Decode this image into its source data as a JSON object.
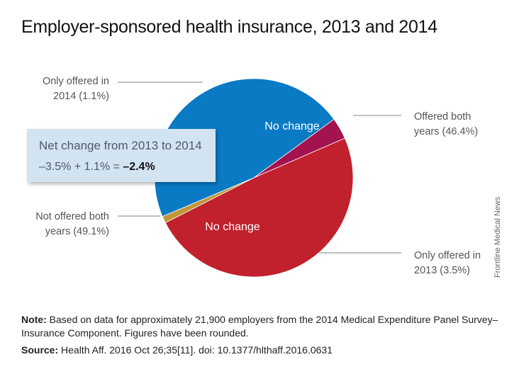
{
  "title": "Employer-sponsored health insurance, 2013 and 2014",
  "chart_data": {
    "type": "pie",
    "title": "Employer-sponsored health insurance, 2013 and 2014",
    "slices": [
      {
        "name": "Offered both years",
        "value": 46.4,
        "label": "Offered both years (46.4%)",
        "inner_label": "No change",
        "color": "#0a7ac4"
      },
      {
        "name": "Only offered in 2013",
        "value": 3.5,
        "label": "Only offered in 2013 (3.5%)",
        "inner_label": "",
        "color": "#a3134f"
      },
      {
        "name": "Not offered both years",
        "value": 49.1,
        "label": "Not offered both years (49.1%)",
        "inner_label": "No change",
        "color": "#c1202d"
      },
      {
        "name": "Only offered in 2014",
        "value": 1.1,
        "label": "Only offered in 2014 (1.1%)",
        "inner_label": "",
        "color": "#c09637"
      }
    ]
  },
  "labels": {
    "only_2014": [
      "Only offered in",
      "2014 (1.1%)"
    ],
    "offered_both": [
      "Offered both",
      "years (46.4%)"
    ],
    "not_offered": [
      "Not offered both",
      "years (49.1%)"
    ],
    "only_2013": [
      "Only offered in",
      "2013 (3.5%)"
    ],
    "no_change_top": "No change",
    "no_change_bottom": "No change"
  },
  "net_box": {
    "title": "Net change from 2013 to 2014",
    "equation": "–3.5% + 1.1% = ",
    "result": "–2.4%"
  },
  "credit": "Frontline Medical News",
  "note": {
    "label": "Note:",
    "text": " Based on data for approximately 21,900 employers from the 2014 Medical Expenditure Panel Survey–Insurance Component. Figures have been rounded."
  },
  "source": {
    "label": "Source:",
    "text": " Health Aff. 2016 Oct 26;35[11]. doi: 10.1377/hlthaff.2016.0631"
  }
}
